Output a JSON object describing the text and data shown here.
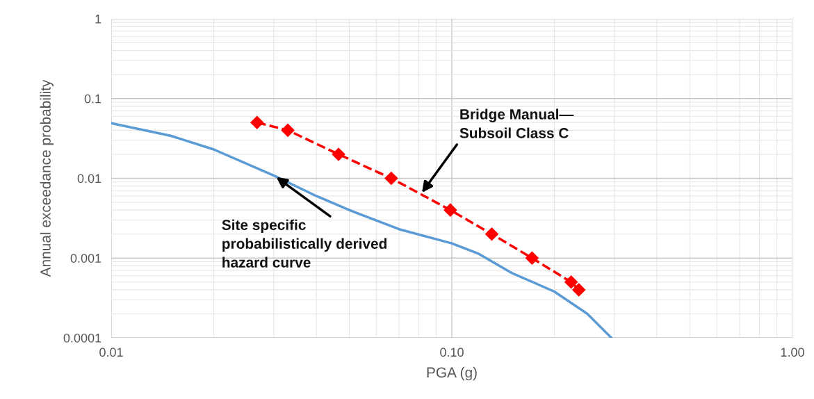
{
  "chart_data": {
    "type": "line",
    "xlabel": "PGA (g)",
    "ylabel": "Annual exceedance probability",
    "log": "xy",
    "grid": true,
    "legend": false,
    "xlim": [
      0.01,
      1
    ],
    "xticks": [
      {
        "value": 0.01,
        "label": "0.01"
      },
      {
        "value": 0.1,
        "label": "0.10"
      },
      {
        "value": 1,
        "label": "1.00"
      }
    ],
    "ylim": [
      0.0001,
      1
    ],
    "yticks": [
      0.0001,
      0.001,
      0.01,
      0.1,
      1
    ],
    "series": [
      {
        "color": "#5b9bd5",
        "marker": "none",
        "line_style": "solid",
        "x": [
          0.01,
          0.015,
          0.02,
          0.0302,
          0.04,
          0.05,
          0.07,
          0.1,
          0.12,
          0.15,
          0.2,
          0.25,
          0.294
        ],
        "values": [
          0.049,
          0.034,
          0.023,
          0.0107,
          0.006,
          0.004,
          0.0023,
          0.00153,
          0.00113,
          0.00065,
          0.00038,
          0.0002,
          0.0001
        ]
      },
      {
        "color": "#ff0000",
        "marker": "diamond",
        "line_style": "dashed",
        "x": [
          0.0268,
          0.033,
          0.0465,
          0.0664,
          0.099,
          0.131,
          0.172,
          0.224,
          0.236
        ],
        "values": [
          0.05,
          0.04,
          0.02,
          0.01,
          0.004,
          0.002,
          0.001,
          0.0005,
          0.0004
        ]
      }
    ],
    "annotations": [
      {
        "text": "Site specific\nprobabilistically derived\nhazard curve",
        "x": 0.0302,
        "y": 0.0107
      },
      "Bridge Manual—\nSubsoil Class C"
    ]
  }
}
